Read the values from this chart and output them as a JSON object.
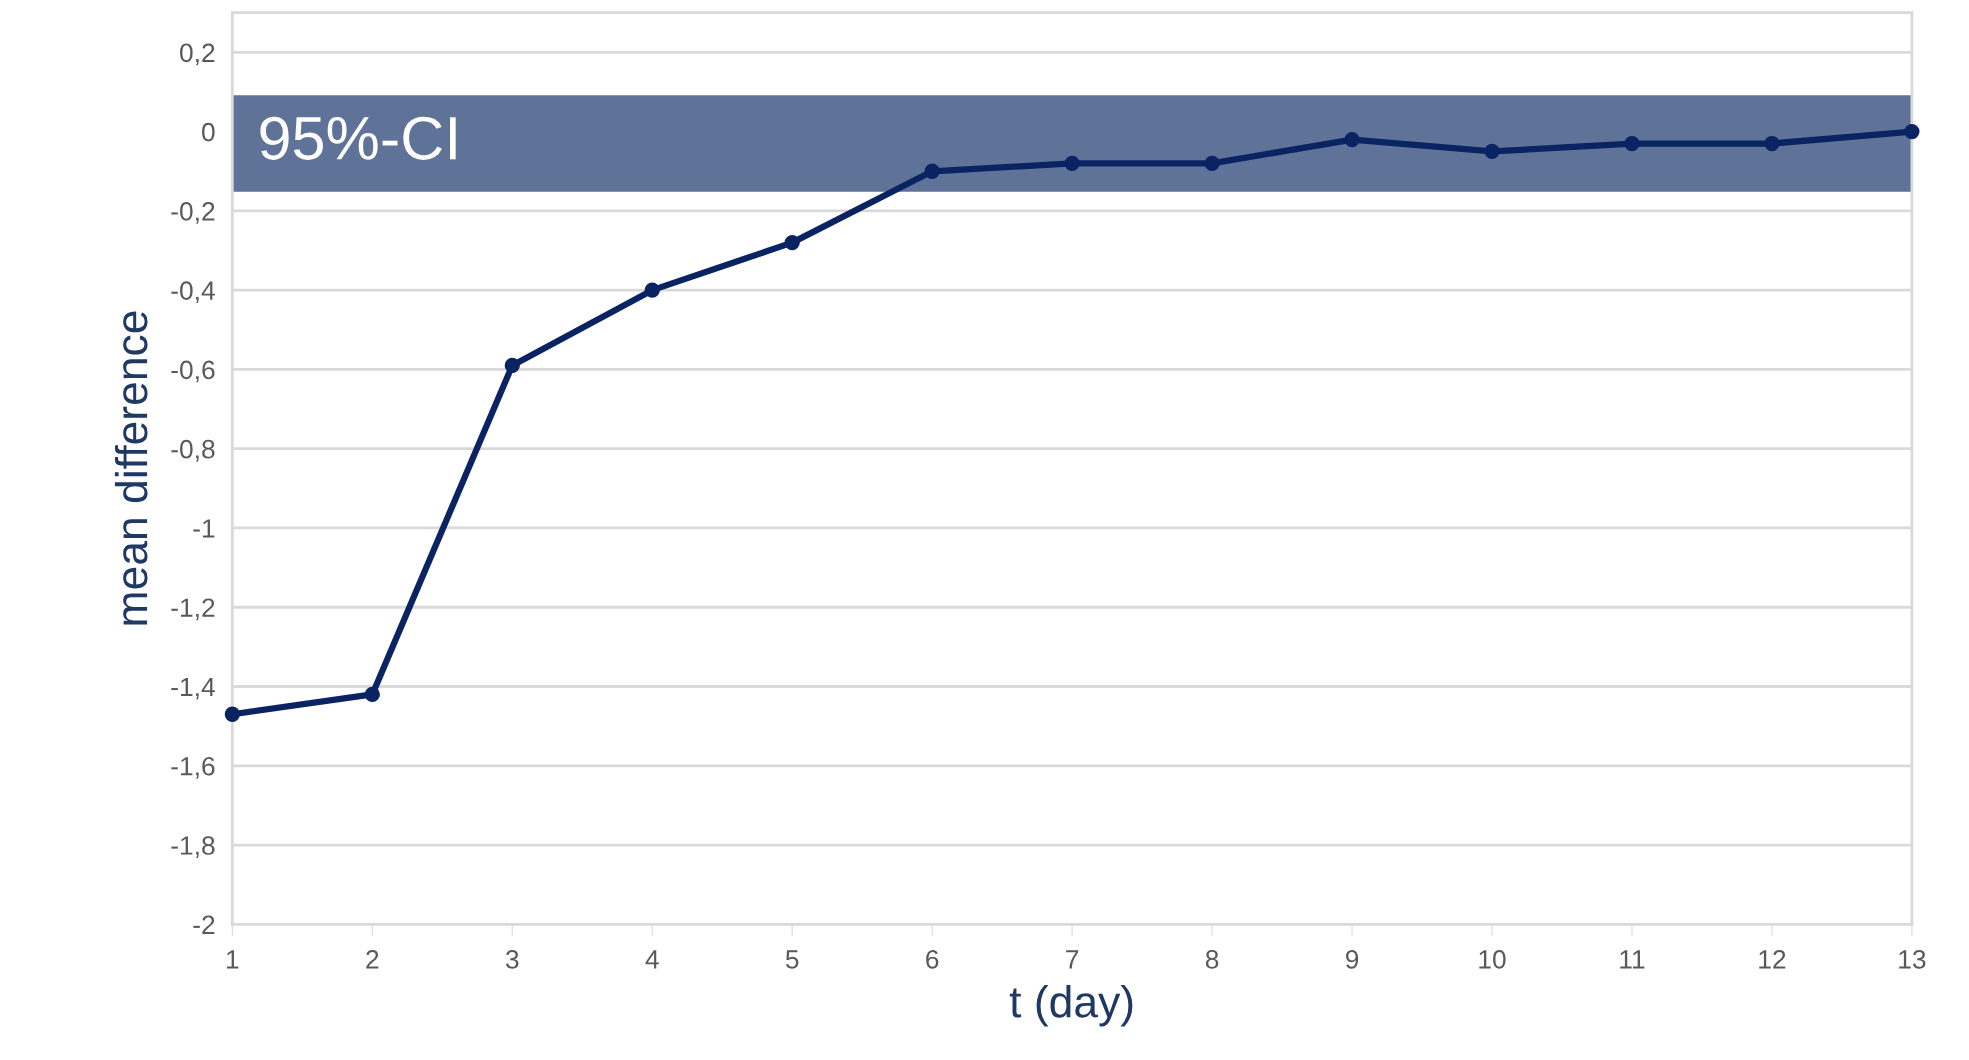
{
  "chart_data": {
    "type": "line",
    "xlabel": "t (day)",
    "ylabel": "mean difference",
    "x": [
      1,
      2,
      3,
      4,
      5,
      6,
      7,
      8,
      9,
      10,
      11,
      12,
      13
    ],
    "series": [
      {
        "color": "#0a2463",
        "values": [
          -1.47,
          -1.42,
          -0.59,
          -0.4,
          -0.28,
          -0.1,
          -0.08,
          -0.08,
          -0.02,
          -0.05,
          -0.03,
          -0.03,
          0.0
        ]
      }
    ],
    "xlim": [
      1,
      13
    ],
    "xticks": [
      1,
      2,
      3,
      4,
      5,
      6,
      7,
      8,
      9,
      10,
      11,
      12,
      13
    ],
    "ylim": [
      -2,
      0.3
    ],
    "yticks": [
      {
        "value": -2,
        "label": "-2"
      },
      {
        "value": -1.8,
        "label": "-1,8"
      },
      {
        "value": -1.6,
        "label": "-1,6"
      },
      {
        "value": -1.4,
        "label": "-1,4"
      },
      {
        "value": -1.2,
        "label": "-1,2"
      },
      {
        "value": -1,
        "label": "-1"
      },
      {
        "value": -0.8,
        "label": "-0,8"
      },
      {
        "value": -0.6,
        "label": "-0,6"
      },
      {
        "value": -0.4,
        "label": "-0,4"
      },
      {
        "value": -0.2,
        "label": "-0,2"
      },
      {
        "value": 0,
        "label": "0"
      },
      {
        "value": 0.2,
        "label": "0,2"
      }
    ],
    "bands": [
      {
        "axis": "y",
        "from": -0.15,
        "to": 0.09,
        "label": "95%-CI",
        "color": "#5f7399"
      }
    ],
    "grid": "y",
    "marker": "circle",
    "line_style": "solid",
    "legend": false
  }
}
